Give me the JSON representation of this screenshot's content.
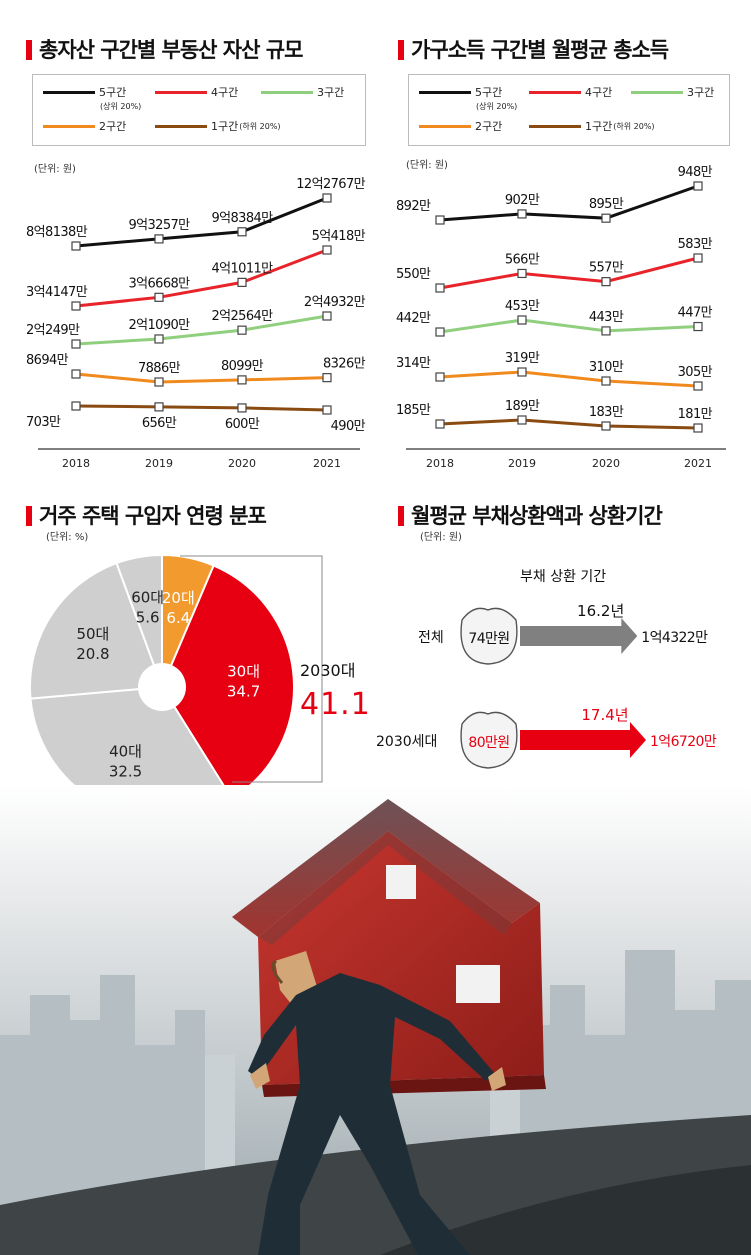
{
  "colors": {
    "q5": "#111111",
    "q4": "#e8232a",
    "q3": "#8fcf7e",
    "q2": "#f08a1e",
    "q1": "#8a4b12",
    "accent": "#e60012",
    "gray": "#cfcfcf"
  },
  "legend": {
    "q5": "5구간",
    "q5_note": "(상위 20%)",
    "q4": "4구간",
    "q3": "3구간",
    "q2": "2구간",
    "q1": "1구간",
    "q1_note": "(하위 20%)"
  },
  "chart_data": [
    {
      "type": "line",
      "title": "총자산 구간별 부동산 자산 규모",
      "unit_label": "(단위: 원)",
      "x": [
        "2018",
        "2019",
        "2020",
        "2021"
      ],
      "series": [
        {
          "name": "5구간",
          "key": "q5",
          "values": [
            881380000,
            932570000,
            983840000,
            1227670000
          ],
          "labels": [
            "8억8138만",
            "9억3257만",
            "9억8384만",
            "12억2767만"
          ]
        },
        {
          "name": "4구간",
          "key": "q4",
          "values": [
            341470000,
            366680000,
            410110000,
            504180000
          ],
          "labels": [
            "3억4147만",
            "3억6668만",
            "4억1011만",
            "5억418만"
          ]
        },
        {
          "name": "3구간",
          "key": "q3",
          "values": [
            202490000,
            210900000,
            225640000,
            249320000
          ],
          "labels": [
            "2억249만",
            "2억1090만",
            "2억2564만",
            "2억4932만"
          ]
        },
        {
          "name": "2구간",
          "key": "q2",
          "values": [
            86940000,
            78860000,
            80990000,
            83260000
          ],
          "labels": [
            "8694만",
            "7886만",
            "8099만",
            "8326만"
          ]
        },
        {
          "name": "1구간",
          "key": "q1",
          "values": [
            7030000,
            6560000,
            6000000,
            4900000
          ],
          "labels": [
            "703만",
            "656만",
            "600만",
            "490만"
          ]
        }
      ]
    },
    {
      "type": "line",
      "title": "가구소득 구간별 월평균 총소득",
      "unit_label": "(단위: 원)",
      "x": [
        "2018",
        "2019",
        "2020",
        "2021"
      ],
      "series": [
        {
          "name": "5구간",
          "key": "q5",
          "values": [
            8920000,
            9020000,
            8950000,
            9480000
          ],
          "labels": [
            "892만",
            "902만",
            "895만",
            "948만"
          ]
        },
        {
          "name": "4구간",
          "key": "q4",
          "values": [
            5500000,
            5660000,
            5570000,
            5830000
          ],
          "labels": [
            "550만",
            "566만",
            "557만",
            "583만"
          ]
        },
        {
          "name": "3구간",
          "key": "q3",
          "values": [
            4420000,
            4530000,
            4430000,
            4470000
          ],
          "labels": [
            "442만",
            "453만",
            "443만",
            "447만"
          ]
        },
        {
          "name": "2구간",
          "key": "q2",
          "values": [
            3140000,
            3190000,
            3100000,
            3050000
          ],
          "labels": [
            "314만",
            "319만",
            "310만",
            "305만"
          ]
        },
        {
          "name": "1구간",
          "key": "q1",
          "values": [
            1850000,
            1890000,
            1830000,
            1810000
          ],
          "labels": [
            "185만",
            "189만",
            "183만",
            "181만"
          ]
        }
      ]
    },
    {
      "type": "pie",
      "title": "거주 주택 구입자 연령 분포",
      "unit_label": "(단위: %)",
      "slices": [
        {
          "label": "20대",
          "value": 6.4,
          "value_text": "6.4"
        },
        {
          "label": "30대",
          "value": 34.7,
          "value_text": "34.7"
        },
        {
          "label": "40대",
          "value": 32.5,
          "value_text": "32.5"
        },
        {
          "label": "50대",
          "value": 20.8,
          "value_text": "20.8"
        },
        {
          "label": "60대",
          "value": 5.6,
          "value_text": "5.6"
        }
      ],
      "combined": {
        "label": "2030대",
        "value": 41.1,
        "value_text": "41.1"
      }
    },
    {
      "type": "table",
      "title": "월평균 부채상환액과 상환기간",
      "unit_label": "(단위: 원)",
      "header": "부채 상환 기간",
      "rows": [
        {
          "group": "전체",
          "monthly": "74만원",
          "period_years": 16.2,
          "period_text": "16.2년",
          "total": "1억4322만"
        },
        {
          "group": "2030세대",
          "monthly": "80만원",
          "period_years": 17.4,
          "period_text": "17.4년",
          "total": "1억6720만"
        }
      ]
    }
  ]
}
